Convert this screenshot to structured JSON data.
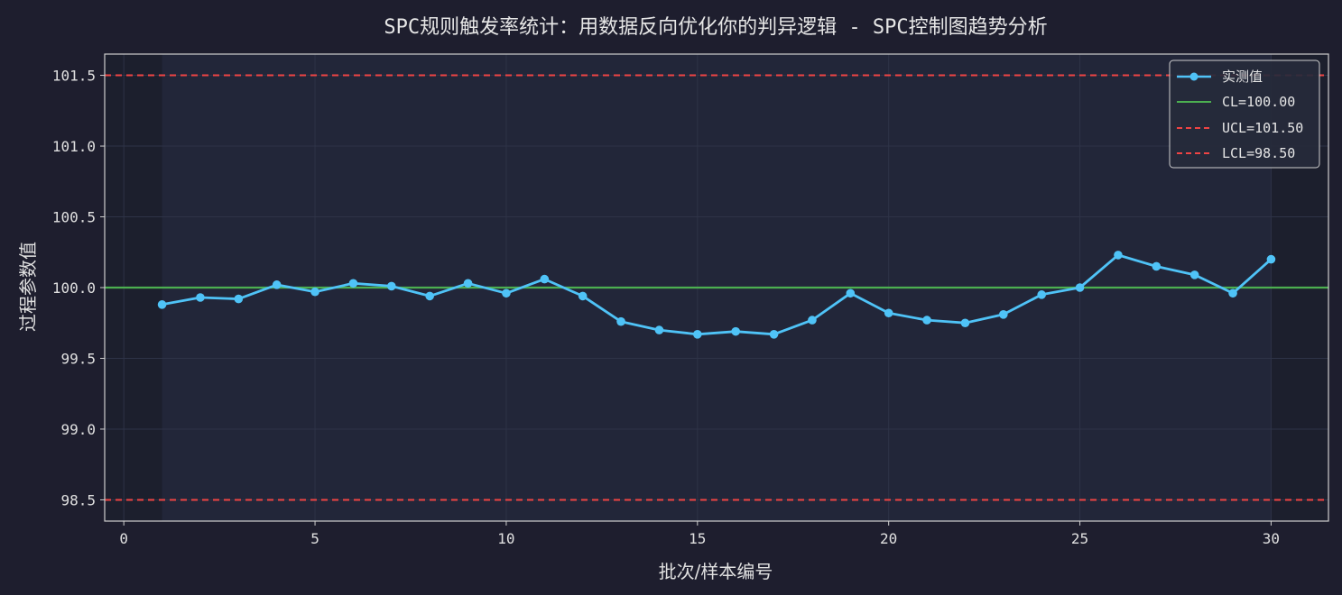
{
  "chart_data": {
    "type": "line",
    "title": "SPC规则触发率统计：用数据反向优化你的判异逻辑 - SPC控制图趋势分析",
    "xlabel": "批次/样本编号",
    "ylabel": "过程参数值",
    "xlim": [
      -0.5,
      31.5
    ],
    "ylim": [
      98.35,
      101.65
    ],
    "xticks": [
      0,
      5,
      10,
      15,
      20,
      25,
      30
    ],
    "yticks": [
      98.5,
      99.0,
      99.5,
      100.0,
      100.5,
      101.0,
      101.5
    ],
    "ytick_labels": [
      "98.5",
      "99.0",
      "99.5",
      "100.0",
      "100.5",
      "101.0",
      "101.5"
    ],
    "grid": true,
    "legend_position": "top-right",
    "series": [
      {
        "name": "实测值",
        "color": "#4fc3f7",
        "x": [
          1,
          2,
          3,
          4,
          5,
          6,
          7,
          8,
          9,
          10,
          11,
          12,
          13,
          14,
          15,
          16,
          17,
          18,
          19,
          20,
          21,
          22,
          23,
          24,
          25,
          26,
          27,
          28,
          29,
          30
        ],
        "y": [
          99.88,
          99.93,
          99.92,
          100.02,
          99.97,
          100.03,
          100.01,
          99.94,
          100.03,
          99.96,
          100.06,
          99.94,
          99.76,
          99.7,
          99.67,
          99.69,
          99.67,
          99.77,
          99.96,
          99.82,
          99.77,
          99.75,
          99.81,
          99.95,
          100.0,
          100.23,
          100.15,
          100.09,
          99.96,
          100.2
        ]
      }
    ],
    "reference_lines": [
      {
        "name": "CL=100.00",
        "value": 100.0,
        "color": "#4caf50",
        "style": "solid"
      },
      {
        "name": "UCL=101.50",
        "value": 101.5,
        "color": "#ef4444",
        "style": "dashed"
      },
      {
        "name": "LCL=98.50",
        "value": 98.5,
        "color": "#ef4444",
        "style": "dashed"
      }
    ],
    "colors": {
      "background": "#1e1e2e",
      "plot_area": "#222639",
      "grid": "#2e3347",
      "axis": "#cfcfcf"
    }
  }
}
